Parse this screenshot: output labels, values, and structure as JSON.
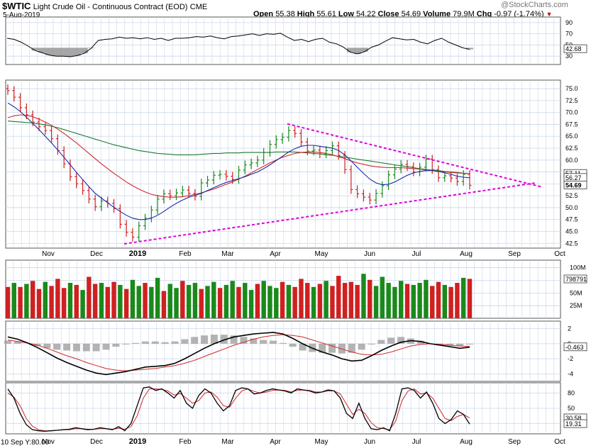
{
  "header": {
    "symbol": "$WTIC",
    "name": "Light Crude Oil - Continuous Contract (EOD)",
    "exchange": "CME",
    "date": "5-Aug-2019",
    "watermark": "@StockCharts.com",
    "open_label": "Open",
    "open": "55.38",
    "high_label": "High",
    "high": "55.61",
    "low_label": "Low",
    "low": "54.22",
    "close_label": "Close",
    "close": "54.69",
    "volume_label": "Volume",
    "volume": "79.9M",
    "chg_label": "Chg",
    "chg": "-0.97 (-1.74%)",
    "chg_arrow": "▼"
  },
  "footer": {
    "crosshair": "10 Sep Y:80.00"
  },
  "colors": {
    "up": "#1a8a1a",
    "down": "#d02020",
    "ma_short": "#1a2aa8",
    "ma_mid": "#d02828",
    "ma_long": "#1d7a2a",
    "trendline": "#e000d8",
    "grid": "#c8d6ea",
    "hist": "#9a9a9a"
  },
  "chart_data": [
    {
      "type": "line",
      "panel": "rsi",
      "yticks": [
        "90",
        "70",
        "50",
        "30"
      ],
      "yrange": [
        15,
        100
      ],
      "current_label": "42.68",
      "series": [
        {
          "values": [
            62,
            60,
            55,
            48,
            40,
            36,
            32,
            30,
            30,
            29,
            31,
            35,
            44,
            58,
            60,
            61,
            64,
            62,
            63,
            61,
            63,
            60,
            62,
            58,
            62,
            62,
            63,
            65,
            64,
            66,
            63,
            61,
            65,
            66,
            68,
            70,
            67,
            70,
            69,
            71,
            64,
            58,
            60,
            56,
            60,
            62,
            55,
            52,
            46,
            37,
            34,
            38,
            46,
            50,
            57,
            63,
            61,
            59,
            60,
            55,
            52,
            58,
            62,
            55,
            50,
            45,
            42
          ]
        }
      ],
      "overbought": 70,
      "oversold": 30
    },
    {
      "type": "candlestick",
      "panel": "price",
      "yticks": [
        "75.0",
        "72.5",
        "70.0",
        "67.5",
        "65.0",
        "62.5",
        "60.0",
        "57.5",
        "55.0",
        "52.5",
        "50.0",
        "47.5",
        "45.0",
        "42.5"
      ],
      "yrange": [
        41.5,
        76.8
      ],
      "xticks": [
        "Nov",
        "Dec",
        "2019",
        "Feb",
        "Mar",
        "Apr",
        "May",
        "Jun",
        "Jul",
        "Aug",
        "Sep",
        "Oct"
      ],
      "xtick_bold": "2019",
      "series": [
        {
          "name": "close",
          "values": [
            74.6,
            73.2,
            71.0,
            69.5,
            68.0,
            67.0,
            66.2,
            64.5,
            62.0,
            59.2,
            56.5,
            55.0,
            53.6,
            51.8,
            50.2,
            51.4,
            50.9,
            49.8,
            46.5,
            44.8,
            43.8,
            46.2,
            47.8,
            49.5,
            51.8,
            52.9,
            52.5,
            53.1,
            53.7,
            53.0,
            52.4,
            55.2,
            55.8,
            56.8,
            57.0,
            56.6,
            55.9,
            57.9,
            59.0,
            59.4,
            60.0,
            61.6,
            63.3,
            64.3,
            64.8,
            66.2,
            65.6,
            63.8,
            61.9,
            62.1,
            61.3,
            62.0,
            63.0,
            61.0,
            58.0,
            53.8,
            52.9,
            52.2,
            51.6,
            53.0,
            54.6,
            56.9,
            58.1,
            59.1,
            58.6,
            57.5,
            58.5,
            60.2,
            58.0,
            56.3,
            56.7,
            56.2,
            55.5,
            57.0,
            54.69
          ]
        },
        {
          "name": "MA20",
          "values": [
            72.0,
            71.2,
            70.2,
            69.0,
            67.7,
            66.4,
            65.0,
            63.6,
            62.1,
            60.6,
            59.0,
            57.4,
            55.9,
            54.4,
            53.0,
            52.0,
            51.0,
            50.1,
            49.2,
            48.4,
            47.8,
            47.5,
            47.5,
            47.8,
            48.4,
            49.2,
            50.1,
            50.9,
            51.6,
            52.2,
            52.6,
            53.0,
            53.6,
            54.2,
            54.8,
            55.3,
            55.7,
            56.1,
            56.5,
            57.0,
            57.5,
            58.2,
            59.0,
            59.9,
            60.8,
            61.7,
            62.4,
            62.9,
            63.1,
            63.1,
            62.9,
            62.7,
            62.5,
            62.0,
            61.1,
            59.8,
            58.5,
            57.2,
            56.0,
            55.2,
            54.8,
            54.9,
            55.4,
            56.1,
            56.8,
            57.3,
            57.6,
            57.8,
            57.8,
            57.6,
            57.3,
            57.0,
            56.6,
            56.4,
            56.27
          ]
        },
        {
          "name": "MA50",
          "values": [
            68.9,
            69.3,
            69.5,
            69.4,
            69.1,
            68.6,
            68.0,
            67.3,
            66.5,
            65.6,
            64.6,
            63.6,
            62.5,
            61.4,
            60.3,
            59.2,
            58.2,
            57.2,
            56.3,
            55.4,
            54.6,
            53.9,
            53.3,
            52.8,
            52.5,
            52.3,
            52.2,
            52.2,
            52.3,
            52.5,
            52.8,
            53.1,
            53.5,
            53.9,
            54.4,
            54.9,
            55.4,
            56.0,
            56.6,
            57.3,
            58.0,
            58.7,
            59.4,
            60.0,
            60.6,
            61.0,
            61.4,
            61.6,
            61.7,
            61.7,
            61.6,
            61.4,
            61.1,
            60.7,
            60.3,
            59.8,
            59.4,
            59.1,
            58.8,
            58.6,
            58.5,
            58.4,
            58.4,
            58.4,
            58.3,
            58.2,
            58.1,
            57.9,
            57.8,
            57.6,
            57.5,
            57.4,
            57.3,
            57.2,
            57.11
          ]
        },
        {
          "name": "MA200",
          "values": [
            68.2,
            68.1,
            68.0,
            67.9,
            67.8,
            67.6,
            67.4,
            67.1,
            66.8,
            66.4,
            66.0,
            65.6,
            65.2,
            64.8,
            64.4,
            64.0,
            63.6,
            63.2,
            62.9,
            62.6,
            62.3,
            62.0,
            61.8,
            61.6,
            61.4,
            61.3,
            61.2,
            61.1,
            61.1,
            61.1,
            61.1,
            61.2,
            61.3,
            61.4,
            61.4,
            61.5,
            61.5,
            61.5,
            61.6,
            61.6,
            61.6,
            61.6,
            61.6,
            61.7,
            61.7,
            61.7,
            61.7,
            61.6,
            61.5,
            61.4,
            61.3,
            61.1,
            61.0,
            60.8,
            60.6,
            60.4,
            60.2,
            60.0,
            59.8,
            59.6,
            59.4,
            59.2,
            59.0,
            58.8,
            58.6,
            58.4,
            58.2,
            58.0,
            57.9,
            57.8,
            57.6,
            57.5,
            57.4,
            57.2,
            57.11
          ]
        }
      ],
      "current_labels": [
        "57.11",
        "56.27",
        "54.69"
      ],
      "trendlines": [
        {
          "from": [
            34,
            67.6
          ],
          "to": [
            98,
            54.8
          ]
        },
        {
          "from": [
            20,
            42.5
          ],
          "to": [
            98,
            54.8
          ]
        }
      ]
    },
    {
      "type": "bar",
      "panel": "volume",
      "yticks": [
        "100M",
        "75M",
        "50M",
        "25M"
      ],
      "current_label": "798791",
      "values_m": [
        62,
        70,
        62,
        68,
        74,
        58,
        72,
        64,
        78,
        60,
        70,
        66,
        56,
        82,
        68,
        70,
        62,
        72,
        66,
        58,
        76,
        64,
        70,
        62,
        80,
        54,
        68,
        60,
        74,
        66,
        70,
        58,
        64,
        72,
        60,
        66,
        74,
        62,
        70,
        56,
        68,
        74,
        64,
        60,
        72,
        66,
        62,
        78,
        70,
        62,
        68,
        74,
        64,
        84,
        70,
        72,
        66,
        88,
        76,
        64,
        82,
        70,
        62,
        74,
        68,
        66,
        70,
        76,
        64,
        72,
        66,
        62,
        70,
        80,
        78
      ],
      "up": [
        false,
        true,
        false,
        true,
        false,
        false,
        true,
        false,
        false,
        false,
        true,
        false,
        true,
        false,
        false,
        true,
        false,
        false,
        true,
        false,
        true,
        true,
        false,
        true,
        true,
        false,
        true,
        true,
        false,
        true,
        true,
        false,
        true,
        true,
        false,
        true,
        true,
        false,
        true,
        true,
        false,
        true,
        true,
        true,
        false,
        true,
        false,
        false,
        false,
        true,
        false,
        true,
        false,
        false,
        false,
        false,
        false,
        true,
        false,
        true,
        true,
        true,
        true,
        true,
        false,
        true,
        true,
        true,
        false,
        false,
        true,
        false,
        false,
        true,
        false
      ]
    },
    {
      "type": "line",
      "panel": "macd",
      "yticks": [
        "2",
        "0",
        "-2",
        "-4"
      ],
      "yrange": [
        -5,
        3
      ],
      "current_label": "-0.463",
      "series": [
        {
          "name": "macd",
          "values": [
            0.9,
            0.6,
            0.1,
            -0.5,
            -1.2,
            -1.9,
            -2.5,
            -3.0,
            -3.5,
            -3.9,
            -4.1,
            -3.9,
            -3.7,
            -3.4,
            -3.1,
            -3.0,
            -2.9,
            -2.6,
            -2.0,
            -1.3,
            -0.6,
            0.0,
            0.5,
            0.9,
            1.1,
            1.3,
            1.4,
            1.5,
            1.3,
            0.7,
            0.0,
            -0.6,
            -1.1,
            -1.5,
            -2.0,
            -2.3,
            -2.2,
            -1.6,
            -0.9,
            -0.3,
            0.2,
            0.4,
            0.3,
            0.0,
            -0.2,
            -0.4,
            -0.6,
            -0.46
          ]
        },
        {
          "name": "signal",
          "values": [
            0.5,
            0.3,
            0.1,
            -0.2,
            -0.6,
            -1.1,
            -1.6,
            -2.0,
            -2.5,
            -2.9,
            -3.3,
            -3.5,
            -3.6,
            -3.5,
            -3.4,
            -3.3,
            -3.1,
            -2.9,
            -2.6,
            -2.2,
            -1.7,
            -1.2,
            -0.7,
            -0.2,
            0.2,
            0.6,
            0.9,
            1.1,
            1.2,
            1.1,
            0.9,
            0.5,
            0.1,
            -0.3,
            -0.7,
            -1.1,
            -1.4,
            -1.5,
            -1.4,
            -1.1,
            -0.7,
            -0.3,
            -0.1,
            0.0,
            -0.1,
            -0.2,
            -0.3,
            -0.36
          ]
        }
      ]
    },
    {
      "type": "line",
      "panel": "stochastic",
      "yticks": [
        "80",
        "50",
        "20"
      ],
      "yrange": [
        0,
        100
      ],
      "current_labels": [
        "30.58",
        "19.31"
      ],
      "series": [
        {
          "name": "k",
          "values": [
            88,
            70,
            40,
            18,
            8,
            6,
            5,
            6,
            7,
            8,
            9,
            12,
            10,
            8,
            9,
            12,
            10,
            8,
            14,
            6,
            20,
            55,
            90,
            92,
            85,
            88,
            80,
            70,
            85,
            60,
            50,
            75,
            88,
            80,
            60,
            45,
            55,
            85,
            90,
            88,
            78,
            80,
            85,
            88,
            86,
            84,
            80,
            88,
            86,
            84,
            80,
            82,
            86,
            84,
            70,
            40,
            30,
            60,
            30,
            10,
            8,
            12,
            6,
            40,
            88,
            90,
            85,
            70,
            82,
            60,
            30,
            20,
            28,
            45,
            38,
            19
          ]
        },
        {
          "name": "d",
          "values": [
            80,
            72,
            55,
            30,
            15,
            8,
            6,
            6,
            7,
            8,
            8,
            10,
            10,
            9,
            9,
            10,
            10,
            9,
            11,
            9,
            14,
            35,
            70,
            88,
            88,
            87,
            84,
            76,
            79,
            70,
            60,
            65,
            80,
            82,
            72,
            55,
            52,
            70,
            84,
            88,
            83,
            80,
            82,
            85,
            86,
            85,
            82,
            85,
            86,
            85,
            82,
            82,
            84,
            84,
            78,
            58,
            38,
            48,
            40,
            22,
            12,
            10,
            8,
            25,
            65,
            84,
            88,
            78,
            80,
            70,
            50,
            30,
            26,
            34,
            38,
            31
          ]
        }
      ]
    }
  ]
}
